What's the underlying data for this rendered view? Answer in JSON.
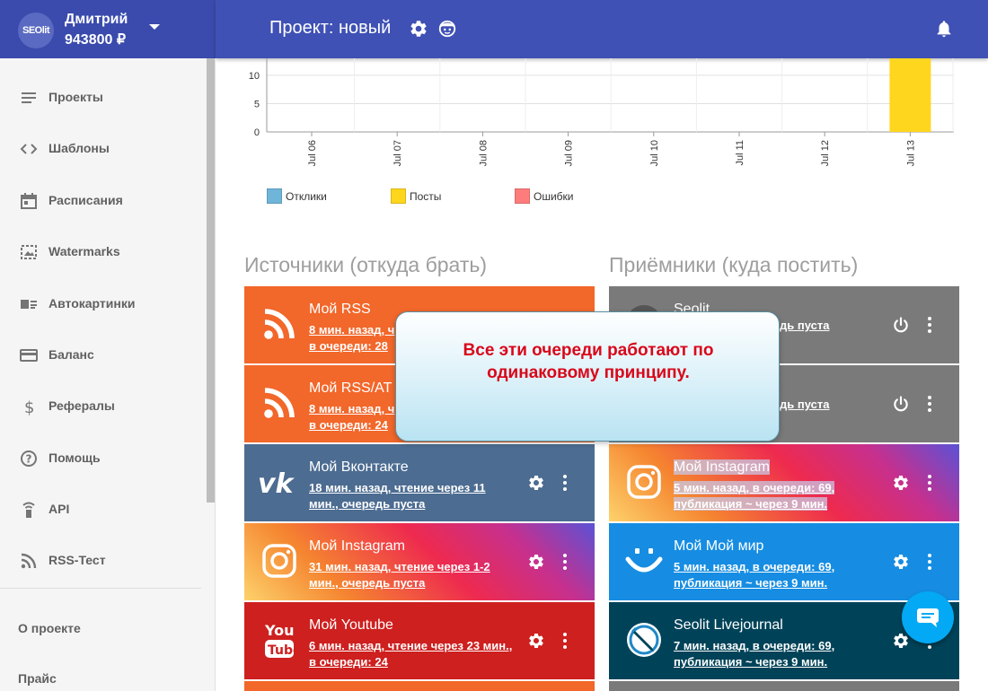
{
  "header": {
    "logo_text": "SEOlit",
    "user_name": "Дмитрий",
    "balance": "943800 ₽",
    "project_title": "Проект: новый"
  },
  "sidebar": {
    "items": [
      {
        "label": "Проекты",
        "icon": "list-icon"
      },
      {
        "label": "Шаблоны",
        "icon": "code-icon"
      },
      {
        "label": "Расписания",
        "icon": "calendar-icon"
      },
      {
        "label": "Watermarks",
        "icon": "watermark-icon"
      },
      {
        "label": "Автокартинки",
        "icon": "autoimage-icon"
      },
      {
        "label": "Баланс",
        "icon": "credit-card-icon"
      },
      {
        "label": "Рефералы",
        "icon": "dollar-icon"
      },
      {
        "label": "Помощь",
        "icon": "help-icon"
      },
      {
        "label": "API",
        "icon": "api-icon"
      },
      {
        "label": "RSS-Тест",
        "icon": "rss-icon"
      }
    ],
    "footer": [
      {
        "label": "О проекте"
      },
      {
        "label": "Прайс"
      }
    ]
  },
  "chart_data": {
    "type": "bar",
    "categories": [
      "Jul 06",
      "Jul 07",
      "Jul 08",
      "Jul 09",
      "Jul 10",
      "Jul 11",
      "Jul 12",
      "Jul 13"
    ],
    "series": [
      {
        "name": "Отклики",
        "color": "#6fb5d9",
        "values": [
          0,
          0,
          0,
          0,
          0,
          0,
          0,
          0
        ]
      },
      {
        "name": "Посты",
        "color": "#ffd61e",
        "values": [
          0,
          0,
          0,
          0,
          0,
          0,
          0,
          13
        ]
      },
      {
        "name": "Ошибки",
        "color": "#ff7c7c",
        "values": [
          0,
          0,
          0,
          0,
          0,
          0,
          0,
          0
        ]
      }
    ],
    "yticks": [
      "0",
      "5",
      "10"
    ],
    "ylim": [
      0,
      13
    ],
    "grid": true,
    "legend": "bottom-left"
  },
  "sources": {
    "title": "Источники (откуда брать)",
    "cards": [
      {
        "name": "Мой RSS",
        "sub1": "8 мин. назад, ч",
        "sub2": "в очереди: 28",
        "icon": "rss-icon",
        "color": "#f2672a"
      },
      {
        "name": "Мой RSS/AT",
        "sub1": "8 мин. назад, ч",
        "sub2": "в очереди: 24",
        "icon": "rss-icon",
        "color": "#f2672a"
      },
      {
        "name": "Мой Вконтакте",
        "sub1": "18 мин. назад, чтение через 11",
        "sub2": "мин., очередь пуста",
        "icon": "vk-icon",
        "color": "#4c6c91"
      },
      {
        "name": "Мой Instagram",
        "sub1": "31 мин. назад, чтение через 1-2",
        "sub2": "мин., очередь пуста",
        "icon": "instagram-icon",
        "color": "instagram"
      },
      {
        "name": "Мой Youtube",
        "sub1": "6 мин. назад, чтение через 23 мин.,",
        "sub2": "в очереди: 24",
        "icon": "youtube-icon",
        "color": "#cd201f"
      }
    ]
  },
  "receivers": {
    "title": "Приёмники (куда постить)",
    "cards": [
      {
        "name": "Seolit",
        "sub1": "дь пуста",
        "sub2": "",
        "icon": "seolit-icon",
        "color": "#7a7a7a"
      },
      {
        "name": "",
        "sub1": "дь пуста",
        "sub2": "",
        "icon": "",
        "color": "#7a7a7a"
      },
      {
        "name": "Мой Instagram",
        "sub1": "5 мин. назад, в очереди: 69,",
        "sub2": "публикация ~ через 9 мин.",
        "icon": "instagram-icon",
        "color": "instagram"
      },
      {
        "name": "Мой Мой мир",
        "sub1": "5 мин. назад, в очереди: 69,",
        "sub2": "публикация ~ через 9 мин.",
        "icon": "moimir-icon",
        "color": "#168de2"
      },
      {
        "name": "Seolit Livejournal",
        "sub1": "7 мин. назад, в очереди: 69,",
        "sub2": "публикация ~ через 9 мин.",
        "icon": "livejournal-icon",
        "color": "#004359"
      }
    ]
  },
  "popup": {
    "text": "Все эти очереди работают по одинаковому принципу."
  }
}
